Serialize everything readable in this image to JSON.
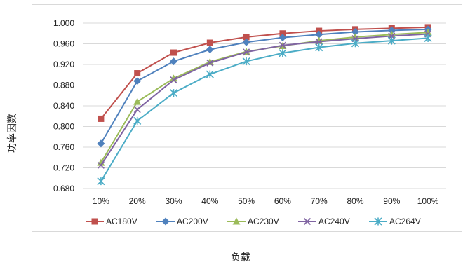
{
  "chart_data": {
    "type": "line",
    "title": "",
    "xlabel": "负载",
    "ylabel": "功率因数",
    "categories": [
      "10%",
      "20%",
      "30%",
      "40%",
      "50%",
      "60%",
      "70%",
      "80%",
      "90%",
      "100%"
    ],
    "ylim": [
      0.68,
      1.0
    ],
    "yticks": [
      0.68,
      0.72,
      0.76,
      0.8,
      0.84,
      0.88,
      0.92,
      0.96,
      1.0
    ],
    "ytick_labels": [
      "0.680",
      "0.720",
      "0.760",
      "0.800",
      "0.840",
      "0.880",
      "0.920",
      "0.960",
      "1.000"
    ],
    "grid": "horizontal",
    "legend_position": "bottom",
    "series": [
      {
        "name": "AC180V",
        "color": "#C0504D",
        "marker": "square",
        "values": [
          0.815,
          0.903,
          0.943,
          0.962,
          0.973,
          0.98,
          0.985,
          0.988,
          0.99,
          0.992
        ]
      },
      {
        "name": "AC200V",
        "color": "#4F81BD",
        "marker": "diamond",
        "values": [
          0.767,
          0.888,
          0.926,
          0.949,
          0.963,
          0.972,
          0.978,
          0.983,
          0.986,
          0.988
        ]
      },
      {
        "name": "AC230V",
        "color": "#9BBB59",
        "marker": "triangle",
        "values": [
          0.73,
          0.848,
          0.893,
          0.925,
          0.945,
          0.956,
          0.966,
          0.973,
          0.978,
          0.982
        ]
      },
      {
        "name": "AC240V",
        "color": "#8064A2",
        "marker": "x",
        "values": [
          0.725,
          0.833,
          0.89,
          0.923,
          0.944,
          0.957,
          0.964,
          0.97,
          0.975,
          0.979
        ]
      },
      {
        "name": "AC264V",
        "color": "#4BACC6",
        "marker": "star",
        "values": [
          0.694,
          0.811,
          0.865,
          0.901,
          0.926,
          0.942,
          0.953,
          0.961,
          0.966,
          0.971
        ]
      }
    ]
  }
}
